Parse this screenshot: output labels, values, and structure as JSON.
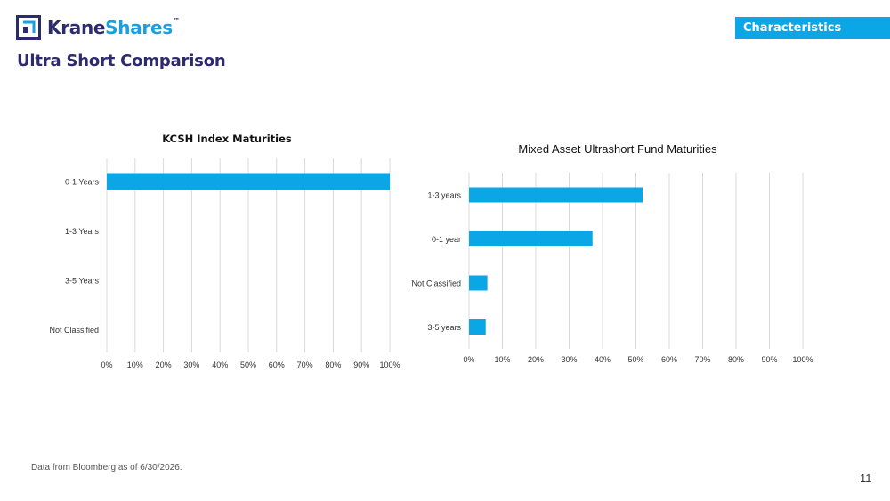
{
  "header": {
    "logo_word_1": "Krane",
    "logo_word_2": "Shares",
    "logo_tm": "™",
    "badge": "Characteristics",
    "title": "Ultra Short Comparison"
  },
  "footer": {
    "note": "Data from Bloomberg as of 6/30/2026.",
    "page": "11"
  },
  "colors": {
    "bar": "#0aa6e6",
    "navy": "#2d2a6e",
    "accent": "#0aa6e6"
  },
  "chart_data": [
    {
      "type": "bar",
      "orientation": "horizontal",
      "title": "KCSH Index Maturities",
      "categories": [
        "0-1 Years",
        "1-3 Years",
        "3-5 Years",
        "Not Classified"
      ],
      "values": [
        100,
        0,
        0,
        0
      ],
      "xlim": [
        0,
        100
      ],
      "ticks": [
        0,
        10,
        20,
        30,
        40,
        50,
        60,
        70,
        80,
        90,
        100
      ],
      "tick_format": "percent",
      "grid": true,
      "legend": "none"
    },
    {
      "type": "bar",
      "orientation": "horizontal",
      "title": "Mixed Asset Ultrashort Fund Maturities",
      "categories": [
        "1-3 years",
        "0-1 year",
        "Not Classified",
        "3-5 years"
      ],
      "values": [
        52,
        37,
        5.5,
        5
      ],
      "xlim": [
        0,
        100
      ],
      "ticks": [
        0,
        10,
        20,
        30,
        40,
        50,
        60,
        70,
        80,
        90,
        100
      ],
      "tick_format": "percent",
      "grid": true,
      "legend": "none"
    }
  ]
}
